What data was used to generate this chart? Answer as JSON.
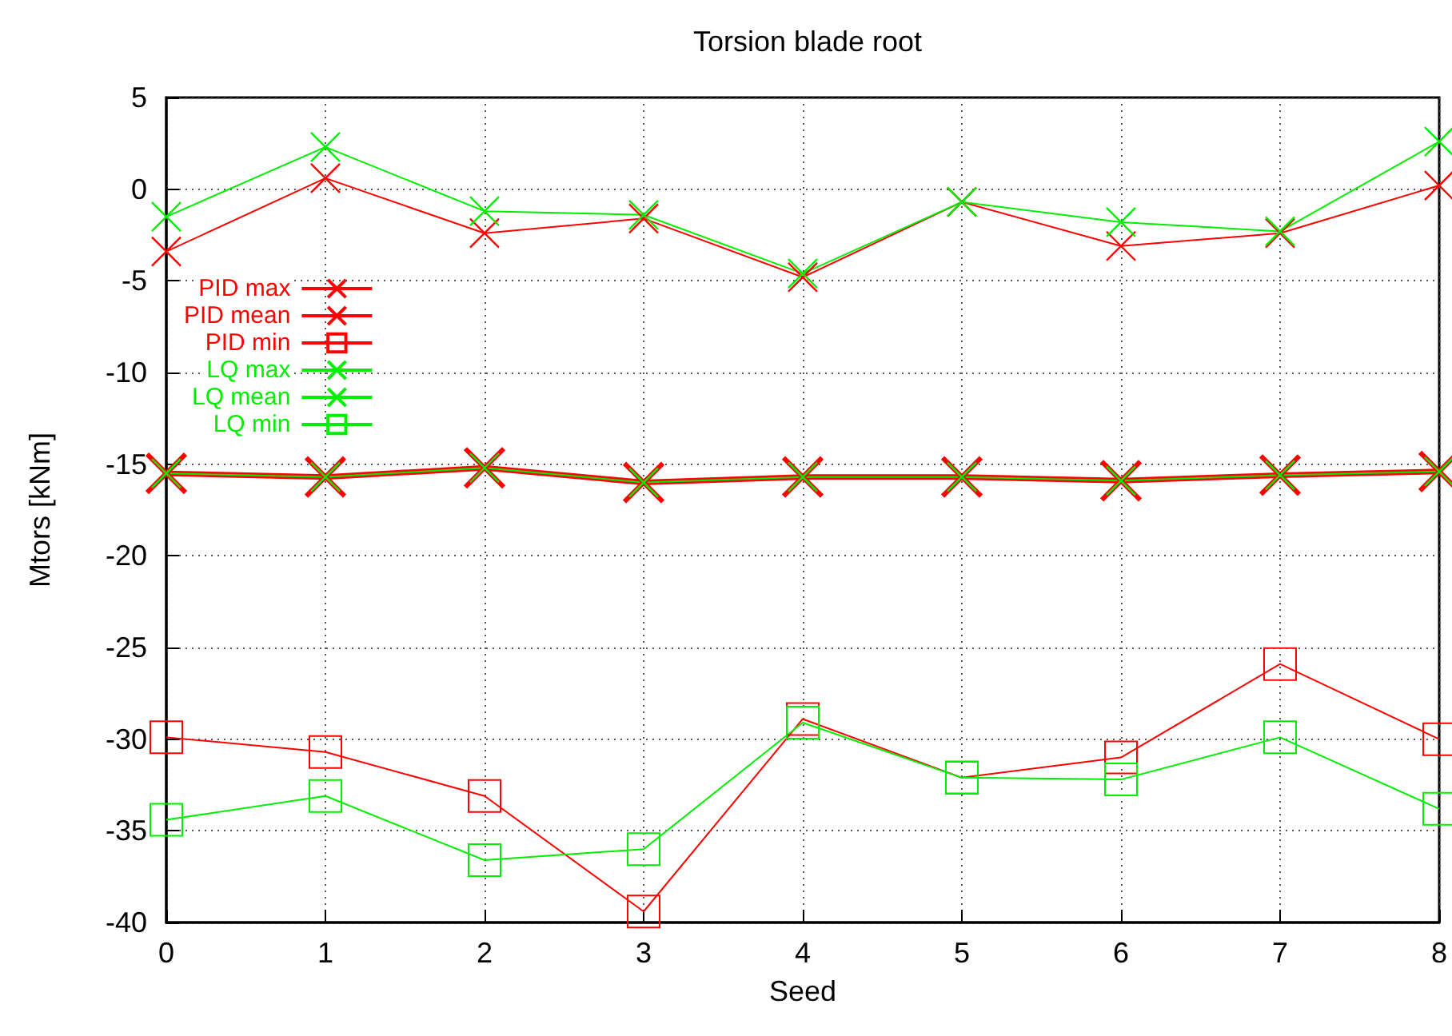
{
  "chart_data": {
    "type": "line",
    "title": "Torsion blade root",
    "xlabel": "Seed",
    "ylabel": "Mtors [kNm]",
    "x": [
      0,
      1,
      2,
      3,
      4,
      5,
      6,
      7,
      8
    ],
    "xlim": [
      0,
      8
    ],
    "xticks": [
      0,
      1,
      2,
      3,
      4,
      5,
      6,
      7,
      8
    ],
    "ylim": [
      -40,
      5
    ],
    "yticks": [
      -40,
      -35,
      -30,
      -25,
      -20,
      -15,
      -10,
      -5,
      0,
      5
    ],
    "grid": true,
    "legend": "top left",
    "line_style": "solid",
    "series": [
      {
        "name": "PID max",
        "color": "#ff0000",
        "marker": "cross",
        "values": [
          -3.4,
          0.6,
          -2.4,
          -1.6,
          -4.8,
          -0.7,
          -3.1,
          -2.4,
          0.2
        ]
      },
      {
        "name": "PID mean",
        "color": "#ff0000",
        "marker": "cross",
        "values": [
          -15.5,
          -15.7,
          -15.2,
          -16.0,
          -15.7,
          -15.7,
          -15.9,
          -15.6,
          -15.4
        ]
      },
      {
        "name": "PID min",
        "color": "#ff0000",
        "marker": "square",
        "values": [
          -29.9,
          -30.7,
          -33.1,
          -39.4,
          -28.9,
          -32.1,
          -31.0,
          -25.9,
          -30.0
        ]
      },
      {
        "name": "LQ max",
        "color": "#00ee00",
        "marker": "cross",
        "values": [
          -1.5,
          2.3,
          -1.2,
          -1.4,
          -4.6,
          -0.7,
          -1.8,
          -2.3,
          2.6
        ]
      },
      {
        "name": "LQ mean",
        "color": "#00ee00",
        "marker": "cross",
        "values": [
          -15.5,
          -15.7,
          -15.2,
          -16.0,
          -15.7,
          -15.7,
          -15.9,
          -15.6,
          -15.4
        ]
      },
      {
        "name": "LQ min",
        "color": "#00ee00",
        "marker": "square",
        "values": [
          -34.4,
          -33.1,
          -36.6,
          -36.0,
          -29.1,
          -32.1,
          -32.2,
          -29.9,
          -33.8
        ]
      }
    ]
  }
}
